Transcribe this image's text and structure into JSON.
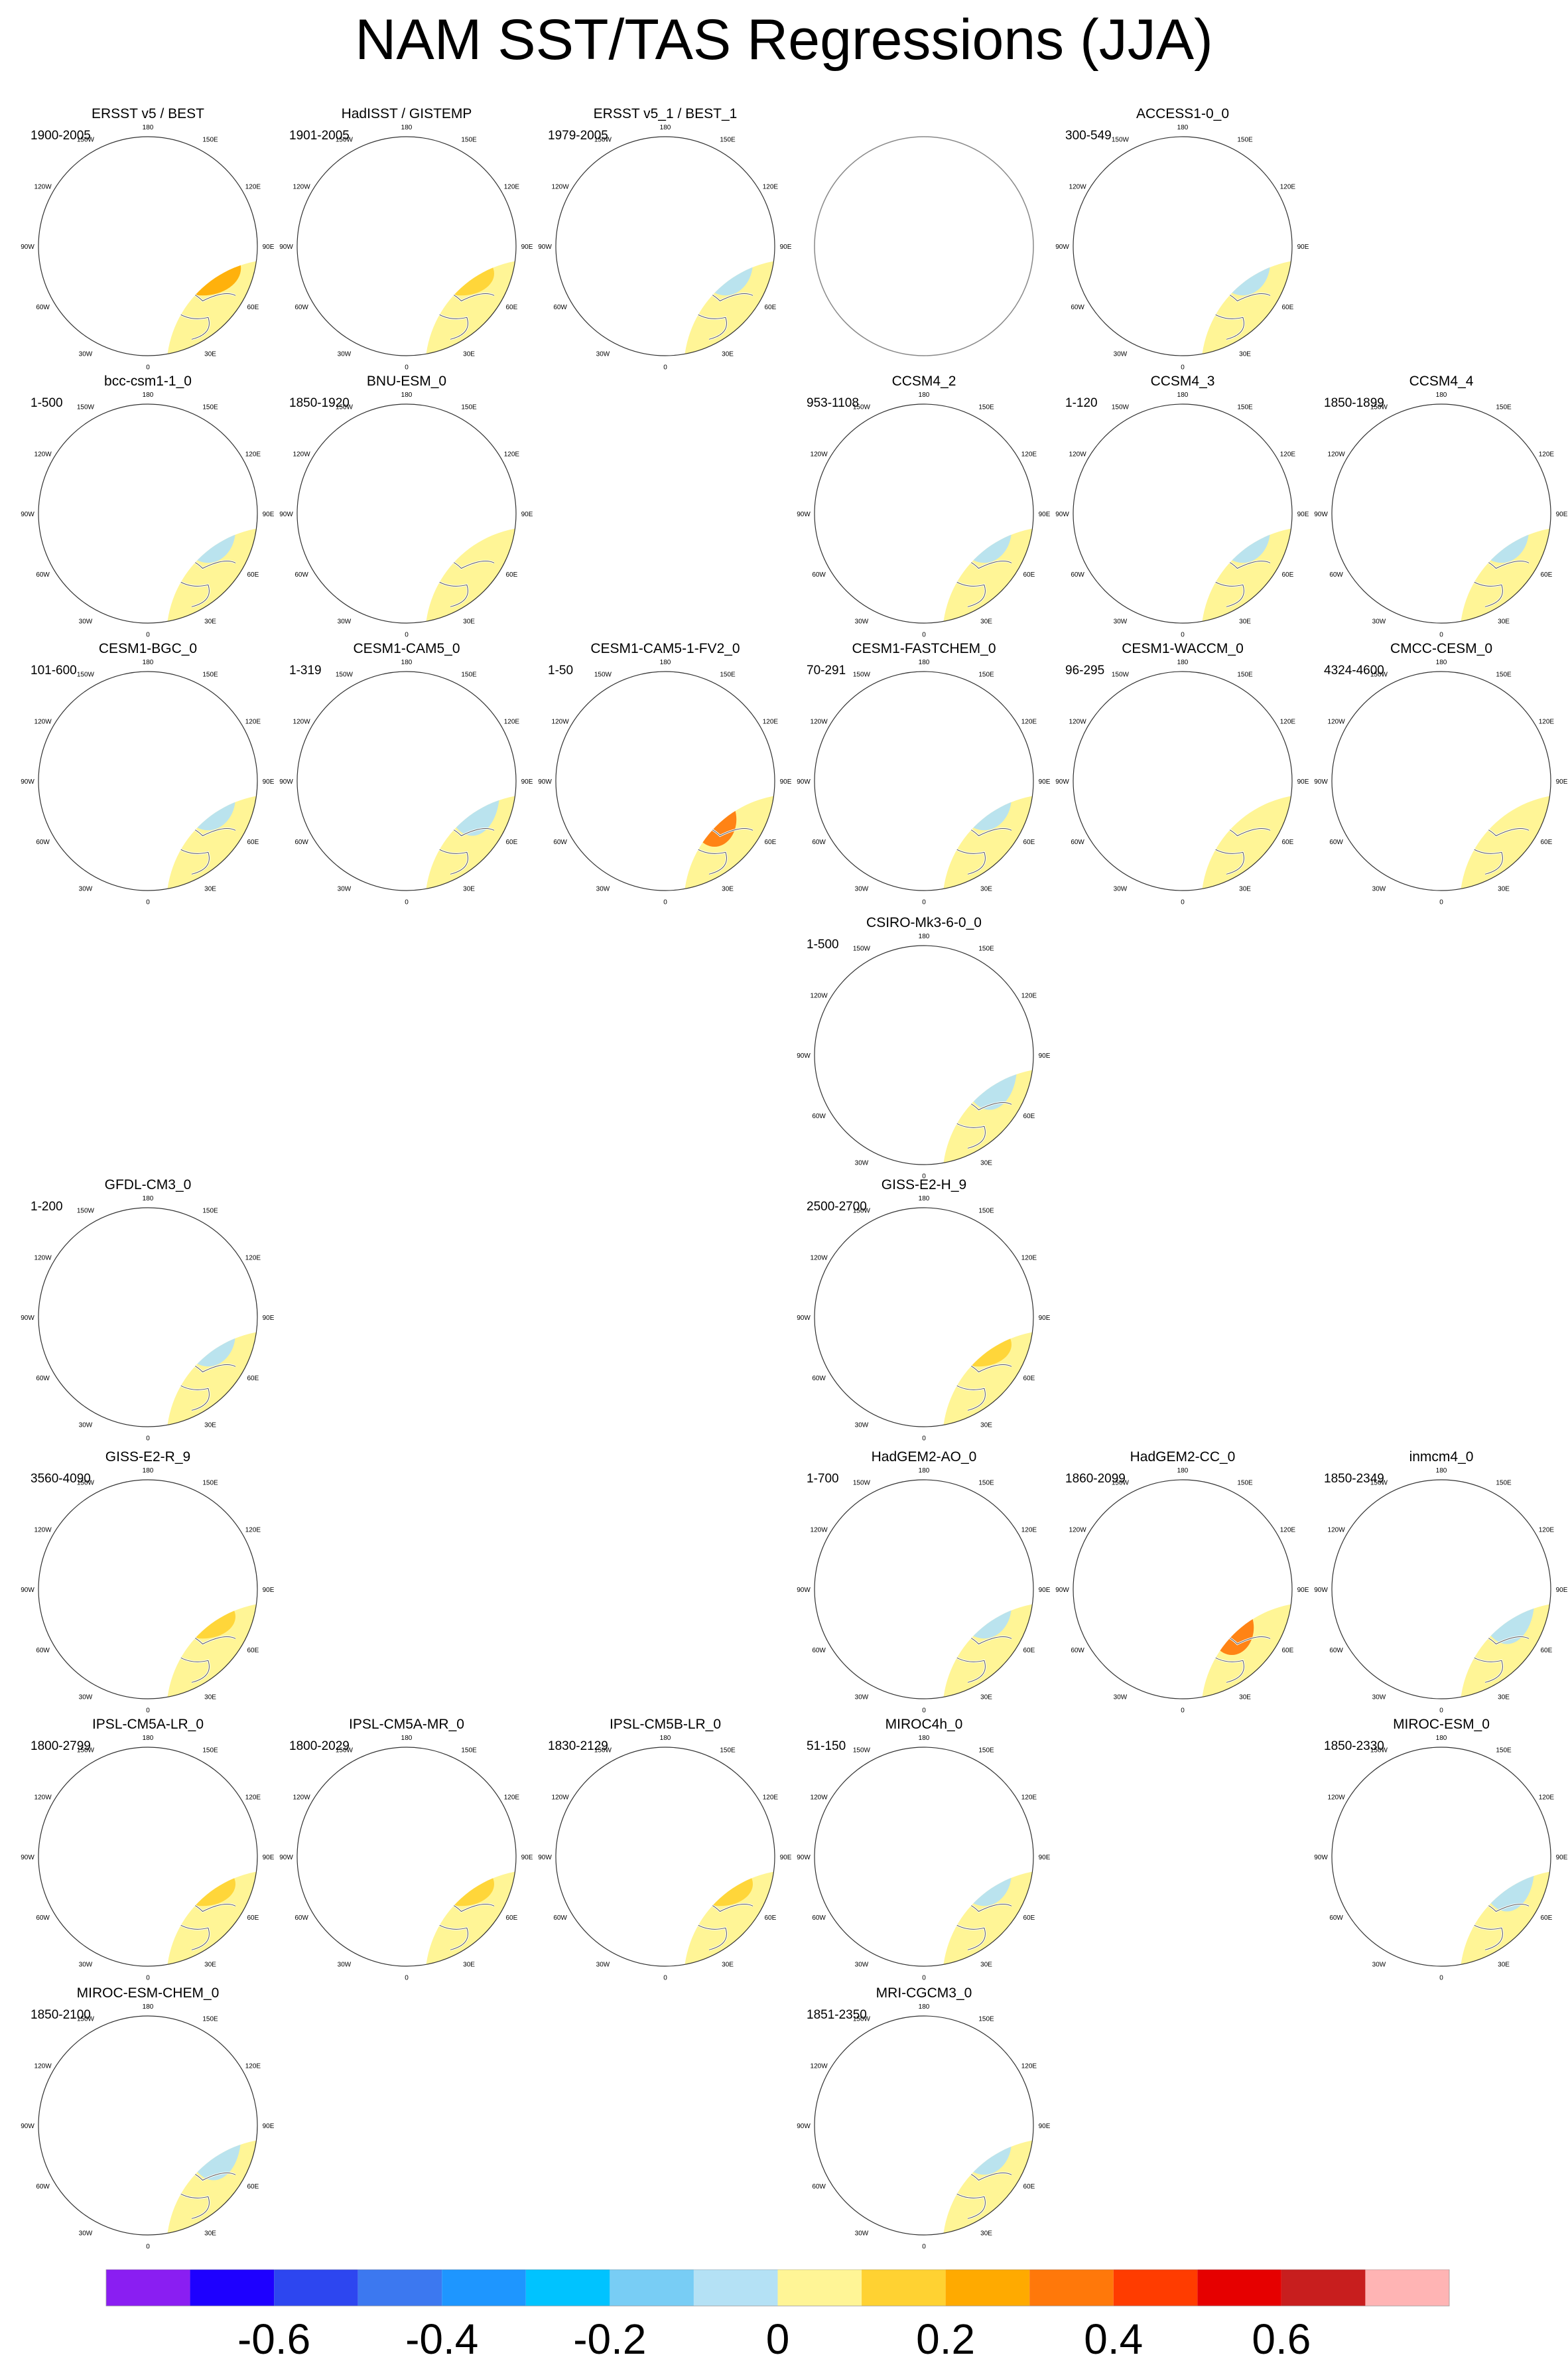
{
  "title": "NAM SST/TAS Regressions (JJA)",
  "chart_data": {
    "type": "heatmap",
    "title": "NAM SST/TAS Regressions (JJA)",
    "projection": "north polar stereographic",
    "longitude_labels": [
      "180",
      "150W",
      "150E",
      "120W",
      "120E",
      "90W",
      "90E",
      "60W",
      "60E",
      "30W",
      "30E",
      "0"
    ],
    "colorbar": {
      "tick_labels": [
        "-0.6",
        "-0.4",
        "-0.2",
        "0",
        "0.2",
        "0.4",
        "0.6"
      ],
      "tick_values": [
        -0.6,
        -0.4,
        -0.2,
        0,
        0.2,
        0.4,
        0.6
      ],
      "level_step": 0.1,
      "range": [
        -0.8,
        0.8
      ],
      "colors": [
        "#8a1ef2",
        "#1e00ff",
        "#2d46f0",
        "#3c78f0",
        "#1e96ff",
        "#00c3ff",
        "#78cdf5",
        "#b4e1f5",
        "#fff596",
        "#ffd232",
        "#ffaa00",
        "#ff780a",
        "#ff3c00",
        "#e60000",
        "#c81e1e",
        "#ffb4b4"
      ]
    },
    "panels": [
      {
        "name": "ERSST v5 / BEST",
        "years": "1900-2005",
        "row": 0,
        "col": 0,
        "pattern": "warm-strong"
      },
      {
        "name": "HadISST / GISTEMP",
        "years": "1901-2005",
        "row": 0,
        "col": 1,
        "pattern": "warm"
      },
      {
        "name": "ERSST v5_1 / BEST_1",
        "years": "1979-2005",
        "row": 0,
        "col": 2,
        "pattern": "mixed"
      },
      {
        "name": "",
        "years": "",
        "row": 0,
        "col": 3,
        "pattern": "empty"
      },
      {
        "name": "ACCESS1-0_0",
        "years": "300-549",
        "row": 0,
        "col": 4,
        "pattern": "mixed"
      },
      {
        "name": "bcc-csm1-1_0",
        "years": "1-500",
        "row": 1,
        "col": 0,
        "pattern": "mixed"
      },
      {
        "name": "BNU-ESM_0",
        "years": "1850-1920",
        "row": 1,
        "col": 1,
        "pattern": "pacific-red"
      },
      {
        "name": "CCSM4_2",
        "years": "953-1108",
        "row": 1,
        "col": 3,
        "pattern": "mixed"
      },
      {
        "name": "CCSM4_3",
        "years": "1-120",
        "row": 1,
        "col": 4,
        "pattern": "mixed"
      },
      {
        "name": "CCSM4_4",
        "years": "1850-1899",
        "row": 1,
        "col": 5,
        "pattern": "mixed"
      },
      {
        "name": "CESM1-BGC_0",
        "years": "101-600",
        "row": 2,
        "col": 0,
        "pattern": "mixed"
      },
      {
        "name": "CESM1-CAM5_0",
        "years": "1-319",
        "row": 2,
        "col": 1,
        "pattern": "cool"
      },
      {
        "name": "CESM1-CAM5-1-FV2_0",
        "years": "1-50",
        "row": 2,
        "col": 2,
        "pattern": "cool-strong"
      },
      {
        "name": "CESM1-FASTCHEM_0",
        "years": "70-291",
        "row": 2,
        "col": 3,
        "pattern": "mixed"
      },
      {
        "name": "CESM1-WACCM_0",
        "years": "96-295",
        "row": 2,
        "col": 4,
        "pattern": "pacific-red"
      },
      {
        "name": "CMCC-CESM_0",
        "years": "4324-4600",
        "row": 2,
        "col": 5,
        "pattern": "pacific-red"
      },
      {
        "name": "CSIRO-Mk3-6-0_0",
        "years": "1-500",
        "row": 3,
        "col": 3,
        "pattern": "cool"
      },
      {
        "name": "GFDL-CM3_0",
        "years": "1-200",
        "row": 4,
        "col": 0,
        "pattern": "mixed"
      },
      {
        "name": "GISS-E2-H_9",
        "years": "2500-2700",
        "row": 4,
        "col": 3,
        "pattern": "warm"
      },
      {
        "name": "GISS-E2-R_9",
        "years": "3560-4090",
        "row": 5,
        "col": 0,
        "pattern": "warm"
      },
      {
        "name": "HadGEM2-AO_0",
        "years": "1-700",
        "row": 5,
        "col": 3,
        "pattern": "mixed"
      },
      {
        "name": "HadGEM2-CC_0",
        "years": "1860-2099",
        "row": 5,
        "col": 4,
        "pattern": "cool-strong"
      },
      {
        "name": "inmcm4_0",
        "years": "1850-2349",
        "row": 5,
        "col": 5,
        "pattern": "cool"
      },
      {
        "name": "IPSL-CM5A-LR_0",
        "years": "1800-2799",
        "row": 6,
        "col": 0,
        "pattern": "warm"
      },
      {
        "name": "IPSL-CM5A-MR_0",
        "years": "1800-2029",
        "row": 6,
        "col": 1,
        "pattern": "warm"
      },
      {
        "name": "IPSL-CM5B-LR_0",
        "years": "1830-2129",
        "row": 6,
        "col": 2,
        "pattern": "warm"
      },
      {
        "name": "MIROC4h_0",
        "years": "51-150",
        "row": 6,
        "col": 3,
        "pattern": "mixed"
      },
      {
        "name": "MIROC-ESM_0",
        "years": "1850-2330",
        "row": 6,
        "col": 5,
        "pattern": "cool"
      },
      {
        "name": "MIROC-ESM-CHEM_0",
        "years": "1850-2100",
        "row": 7,
        "col": 0,
        "pattern": "cool"
      },
      {
        "name": "MRI-CGCM3_0",
        "years": "1851-2350",
        "row": 7,
        "col": 3,
        "pattern": "mixed"
      }
    ]
  }
}
